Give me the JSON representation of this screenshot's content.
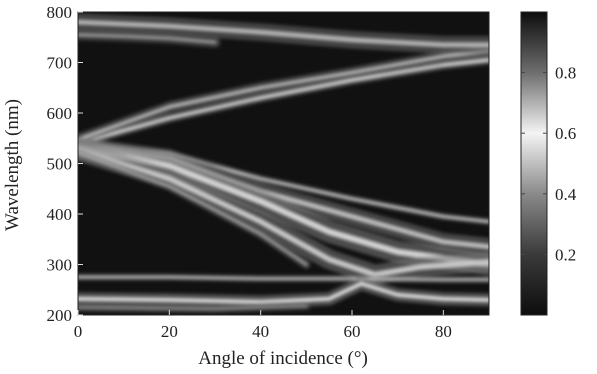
{
  "chart_data": {
    "type": "heatmap",
    "title": "",
    "xlabel": "Angle of incidence (°)",
    "ylabel": "Wavelength (nm)",
    "xlim": [
      0,
      90
    ],
    "ylim": [
      200,
      800
    ],
    "x_ticks": [
      "0",
      "20",
      "40",
      "60",
      "80"
    ],
    "y_ticks": [
      "200",
      "300",
      "400",
      "500",
      "600",
      "700",
      "800"
    ],
    "colorbar": {
      "range": [
        0,
        1
      ],
      "ticks": [
        "0.2",
        "0.4",
        "0.6",
        "0.8"
      ],
      "colormap": "gray-mirrored"
    },
    "bands": [
      {
        "points": [
          [
            0,
            540
          ],
          [
            20,
            590
          ],
          [
            40,
            630
          ],
          [
            60,
            665
          ],
          [
            80,
            695
          ],
          [
            90,
            705
          ]
        ],
        "width": 4,
        "intensity": 0.95
      },
      {
        "points": [
          [
            0,
            548
          ],
          [
            20,
            612
          ],
          [
            40,
            650
          ],
          [
            60,
            680
          ],
          [
            80,
            712
          ],
          [
            90,
            722
          ]
        ],
        "width": 5,
        "intensity": 0.75
      },
      {
        "points": [
          [
            0,
            780
          ],
          [
            20,
            772
          ],
          [
            40,
            760
          ],
          [
            60,
            745
          ],
          [
            80,
            735
          ],
          [
            90,
            735
          ]
        ],
        "width": 8,
        "intensity": 0.7
      },
      {
        "points": [
          [
            0,
            755
          ],
          [
            10,
            752
          ],
          [
            20,
            748
          ],
          [
            30,
            740
          ]
        ],
        "width": 5,
        "intensity": 0.6
      },
      {
        "points": [
          [
            0,
            540
          ],
          [
            20,
            520
          ],
          [
            40,
            470
          ],
          [
            60,
            430
          ],
          [
            80,
            395
          ],
          [
            90,
            385
          ]
        ],
        "width": 3,
        "intensity": 0.9
      },
      {
        "points": [
          [
            0,
            535
          ],
          [
            20,
            510
          ],
          [
            40,
            445
          ],
          [
            60,
            395
          ],
          [
            80,
            345
          ],
          [
            90,
            335
          ]
        ],
        "width": 8,
        "intensity": 0.75
      },
      {
        "points": [
          [
            0,
            530
          ],
          [
            20,
            495
          ],
          [
            40,
            425
          ],
          [
            55,
            365
          ],
          [
            70,
            325
          ],
          [
            90,
            300
          ]
        ],
        "width": 10,
        "intensity": 0.85
      },
      {
        "points": [
          [
            0,
            525
          ],
          [
            20,
            470
          ],
          [
            40,
            385
          ],
          [
            55,
            310
          ],
          [
            65,
            280
          ],
          [
            75,
            295
          ],
          [
            90,
            305
          ]
        ],
        "width": 9,
        "intensity": 0.8
      },
      {
        "points": [
          [
            0,
            520
          ],
          [
            20,
            455
          ],
          [
            40,
            360
          ],
          [
            50,
            300
          ]
        ],
        "width": 4,
        "intensity": 0.65
      },
      {
        "points": [
          [
            0,
            275
          ],
          [
            20,
            275
          ],
          [
            40,
            272
          ],
          [
            60,
            272
          ],
          [
            80,
            270
          ],
          [
            90,
            270
          ]
        ],
        "width": 3,
        "intensity": 0.85
      },
      {
        "points": [
          [
            0,
            232
          ],
          [
            20,
            230
          ],
          [
            40,
            226
          ],
          [
            55,
            232
          ],
          [
            62,
            262
          ],
          [
            70,
            240
          ],
          [
            80,
            232
          ],
          [
            90,
            230
          ]
        ],
        "width": 6,
        "intensity": 0.9
      },
      {
        "points": [
          [
            0,
            215
          ],
          [
            30,
            212
          ],
          [
            50,
            218
          ]
        ],
        "width": 4,
        "intensity": 0.55
      }
    ]
  }
}
